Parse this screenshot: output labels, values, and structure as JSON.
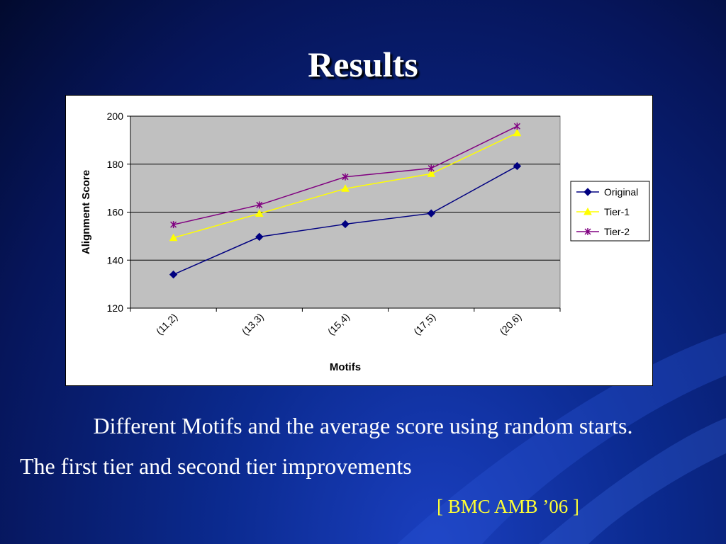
{
  "slide": {
    "title": "Results",
    "caption_line1": "Different Motifs and the average score using random starts.",
    "caption_line2": "The first tier and second tier improvements",
    "citation": "[ BMC AMB ’06 ]",
    "colors": {
      "background": "#0b2a8f",
      "title": "#ffffff",
      "citation": "#ffff33"
    }
  },
  "chart_data": {
    "type": "line",
    "title": "",
    "xlabel": "Motifs",
    "ylabel": "Alignment Score",
    "categories": [
      "(11,2)",
      "(13,3)",
      "(15,4)",
      "(17,5)",
      "(20,6)"
    ],
    "ylim": [
      120,
      200
    ],
    "yticks": [
      120,
      140,
      160,
      180,
      200
    ],
    "grid": true,
    "legend": "right",
    "plot_background": "#c0c0c0",
    "series": [
      {
        "name": "Original",
        "values": [
          134,
          149.7,
          155,
          159.5,
          179.2
        ],
        "color": "#000080",
        "marker": "diamond"
      },
      {
        "name": "Tier-1",
        "values": [
          149.3,
          159.4,
          169.8,
          176,
          193
        ],
        "color": "#ffff00",
        "marker": "triangle"
      },
      {
        "name": "Tier-2",
        "values": [
          154.8,
          163,
          174.7,
          178.3,
          195.8
        ],
        "color": "#800080",
        "marker": "star"
      }
    ]
  }
}
